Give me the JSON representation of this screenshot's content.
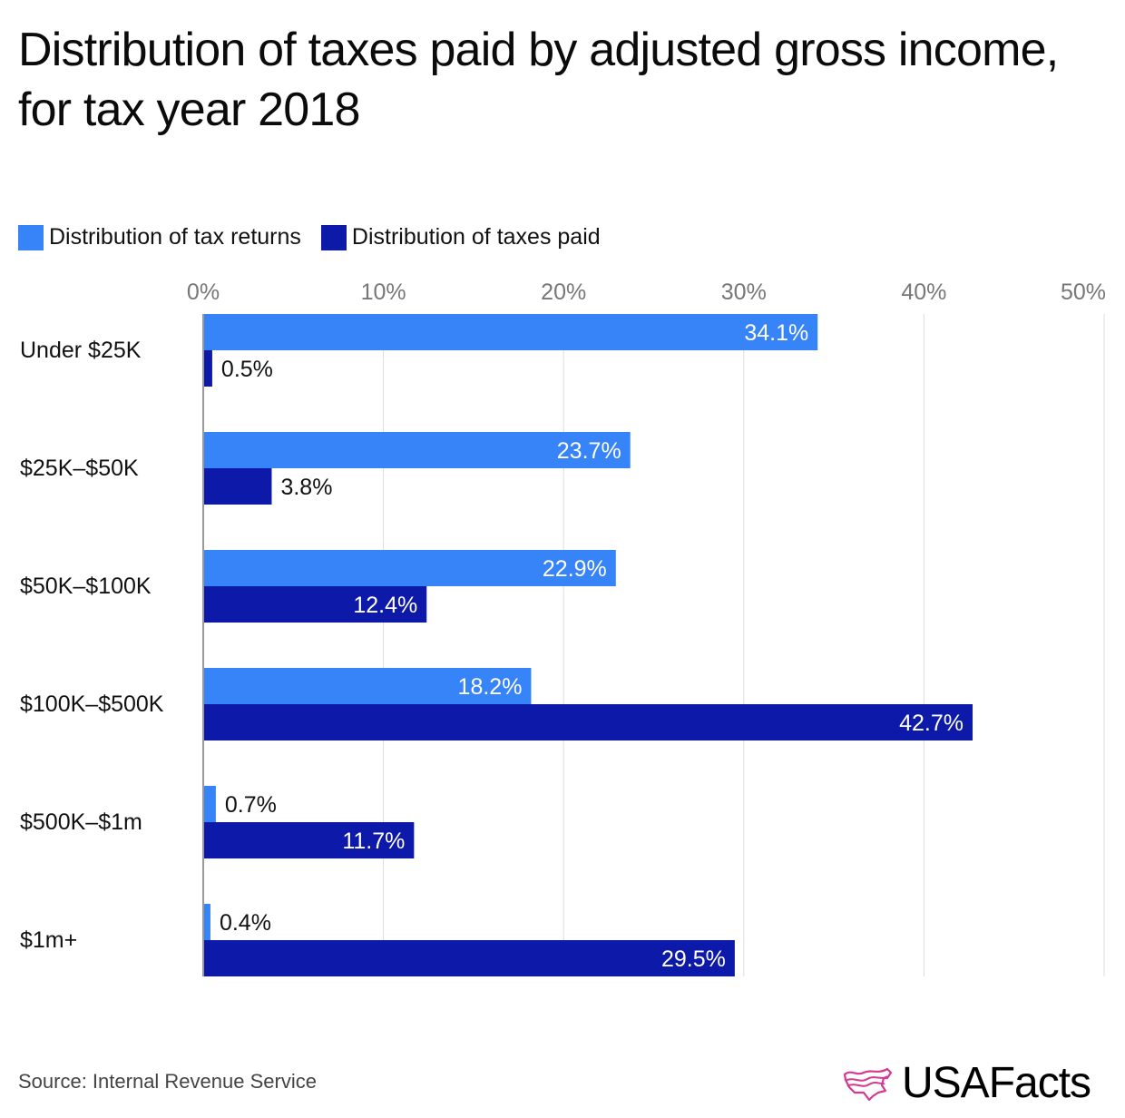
{
  "title": "Distribution of taxes paid by adjusted gross income, for tax year 2018",
  "source": "Source: Internal Revenue Service",
  "brand": {
    "name": "USAFacts",
    "logo_icon": "usa-map-flag-icon",
    "logo_color": "#d6398f"
  },
  "colors": {
    "returns": "#3784f9",
    "taxes": "#0d19a8",
    "grid": "#dddddd",
    "axis": "#999999"
  },
  "chart_data": {
    "type": "bar",
    "orientation": "horizontal",
    "title": "Distribution of taxes paid by adjusted gross income, for tax year 2018",
    "xlabel": "",
    "ylabel": "",
    "xlim": [
      0,
      50
    ],
    "x_ticks": [
      0,
      10,
      20,
      30,
      40,
      50
    ],
    "x_tick_labels": [
      "0%",
      "10%",
      "20%",
      "30%",
      "40%",
      "50%"
    ],
    "grid": true,
    "legend_position": "top-left",
    "categories": [
      "Under $25K",
      "$25K–$50K",
      "$50K–$100K",
      "$100K–$500K",
      "$500K–$1m",
      "$1m+"
    ],
    "series": [
      {
        "name": "Distribution of tax returns",
        "color": "#3784f9",
        "values": [
          34.1,
          23.7,
          22.9,
          18.2,
          0.7,
          0.4
        ]
      },
      {
        "name": "Distribution of taxes paid",
        "color": "#0d19a8",
        "values": [
          0.5,
          3.8,
          12.4,
          42.7,
          11.7,
          29.5
        ]
      }
    ],
    "value_suffix": "%"
  }
}
